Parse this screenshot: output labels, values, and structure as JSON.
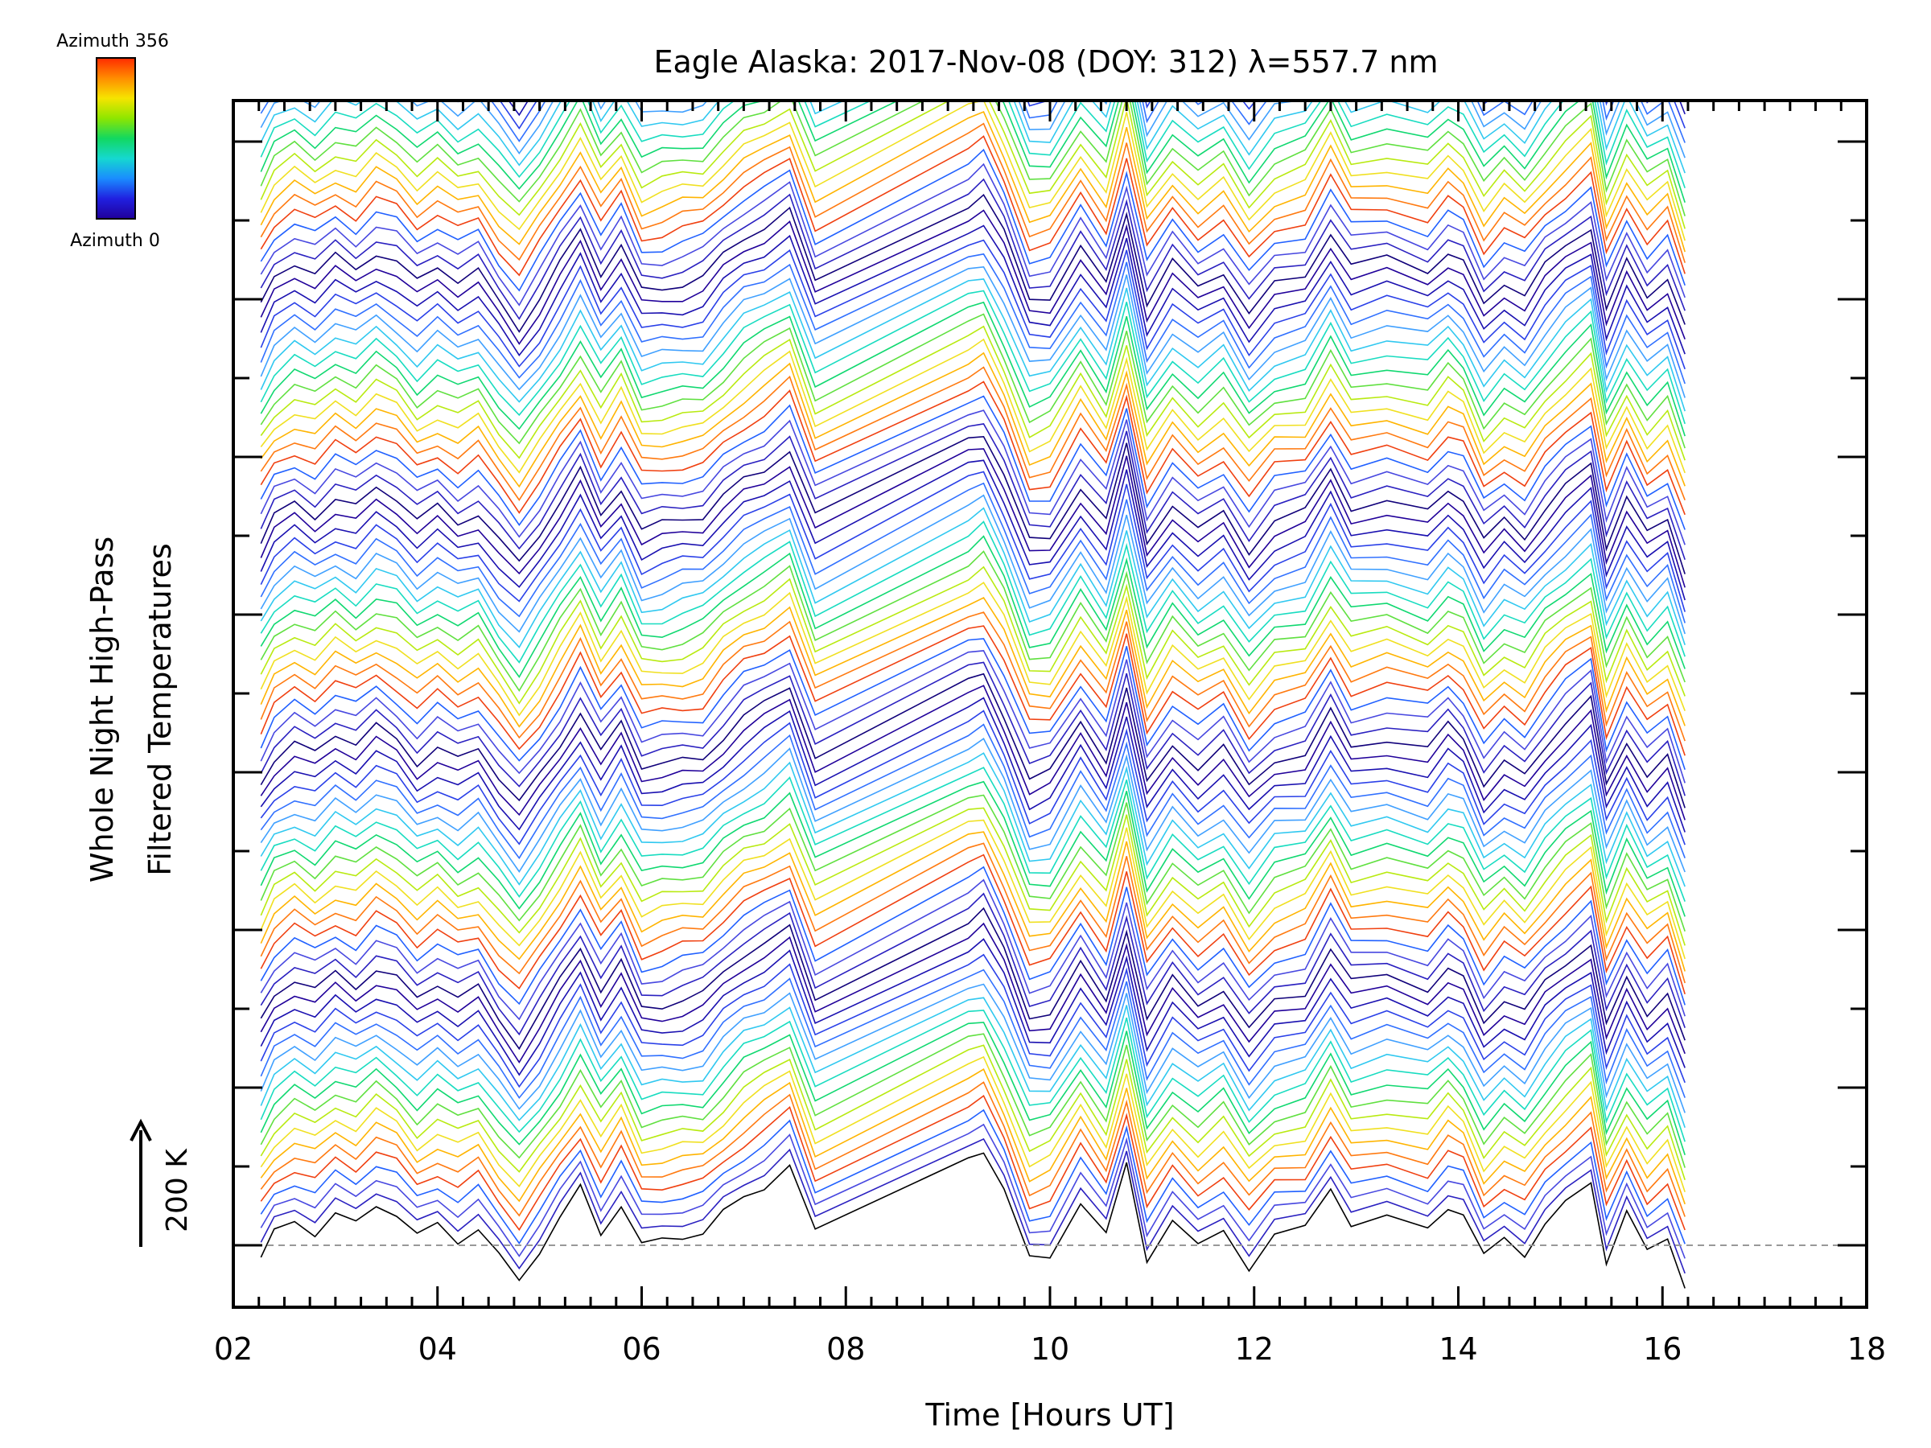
{
  "chart_data": {
    "type": "line",
    "title": "Eagle Alaska: 2017-Nov-08 (DOY: 312) λ=557.7 nm",
    "xlabel": "Time [Hours UT]",
    "ylabel_line1": "Whole Night High-Pass",
    "ylabel_line2": "Filtered Temperatures",
    "xlim": [
      2,
      18
    ],
    "x_ticks": [
      "02",
      "04",
      "06",
      "08",
      "10",
      "12",
      "14",
      "16",
      "18"
    ],
    "scale_bar_label": "200 K",
    "colorbar": {
      "top_label": "Azimuth 356",
      "bottom_label": "Azimuth 0",
      "colors": [
        "#ff2a00",
        "#ff8c00",
        "#f6e400",
        "#8ee600",
        "#12d860",
        "#15d8d0",
        "#1a8cff",
        "#2020e0",
        "#20009a"
      ]
    },
    "data_start_hour": 2.27,
    "data_end_hour": 16.22,
    "gap_start_hour": 7.7,
    "gap_end_hour": 9.2,
    "x": [
      2.27,
      2.4,
      2.6,
      2.8,
      3.0,
      3.2,
      3.4,
      3.6,
      3.8,
      4.0,
      4.2,
      4.4,
      4.6,
      4.8,
      5.0,
      5.2,
      5.4,
      5.6,
      5.8,
      6.0,
      6.2,
      6.4,
      6.6,
      6.8,
      7.0,
      7.2,
      7.45,
      7.7,
      9.2,
      9.35,
      9.55,
      9.8,
      10.0,
      10.3,
      10.55,
      10.75,
      10.95,
      11.2,
      11.45,
      11.7,
      11.95,
      12.2,
      12.5,
      12.75,
      12.95,
      13.3,
      13.7,
      13.9,
      14.05,
      14.25,
      14.45,
      14.65,
      14.85,
      15.05,
      15.3,
      15.45,
      15.65,
      15.85,
      16.05,
      16.22
    ],
    "base_profile": [
      -20,
      15,
      35,
      20,
      45,
      30,
      55,
      40,
      10,
      30,
      10,
      25,
      -15,
      -50,
      -10,
      35,
      80,
      20,
      60,
      0,
      5,
      10,
      15,
      45,
      70,
      85,
      110,
      15,
      120,
      130,
      75,
      -15,
      -10,
      60,
      10,
      110,
      -20,
      35,
      0,
      25,
      -30,
      10,
      20,
      80,
      30,
      40,
      25,
      55,
      40,
      -20,
      10,
      -10,
      30,
      60,
      90,
      -25,
      40,
      -10,
      15,
      -55
    ],
    "curve_count": 90,
    "curve_color_cycle": [
      "#10007a",
      "#2a20c0",
      "#4848e0",
      "#2060ff",
      "#f04010",
      "#ff7a10",
      "#ffb400",
      "#f0e020",
      "#b8ea10",
      "#60e040",
      "#10d870",
      "#18dcc0",
      "#30c8f0",
      "#40a0ff",
      "#3070ff",
      "#2a40e8",
      "#1a10b0",
      "#20009a"
    ]
  }
}
